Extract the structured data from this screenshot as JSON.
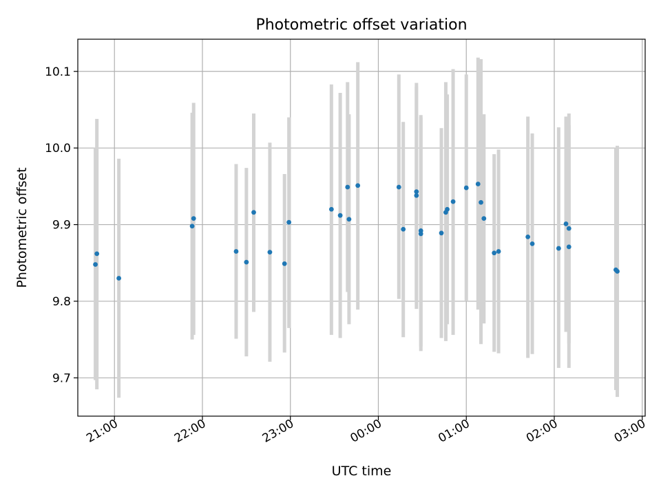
{
  "chart_data": {
    "type": "scatter",
    "title": "Photometric offset variation",
    "xlabel": "UTC time",
    "ylabel": "Photometric offset",
    "x_unit": "UTC hh:mm",
    "xlim": [
      "20:35",
      "03:02"
    ],
    "ylim": [
      9.65,
      10.142
    ],
    "grid": true,
    "x_ticks": [
      "21:00",
      "22:00",
      "23:00",
      "00:00",
      "01:00",
      "02:00",
      "03:00"
    ],
    "y_ticks": [
      9.7,
      9.8,
      9.9,
      10.0,
      10.1
    ],
    "y_tick_labels": [
      "9.7",
      "9.8",
      "9.9",
      "10.0",
      "10.1"
    ],
    "colors": {
      "points": "#1f77b4",
      "errorbars": "#d3d3d3",
      "grid": "#b0b0b0"
    },
    "points": [
      {
        "t": "20:47",
        "y": 9.848,
        "lo": 9.697,
        "hi": 10.0
      },
      {
        "t": "20:48",
        "y": 9.862,
        "lo": 9.685,
        "hi": 10.038
      },
      {
        "t": "21:03",
        "y": 9.83,
        "lo": 9.674,
        "hi": 9.986
      },
      {
        "t": "21:53",
        "y": 9.898,
        "lo": 9.75,
        "hi": 10.046
      },
      {
        "t": "21:54",
        "y": 9.908,
        "lo": 9.756,
        "hi": 10.059
      },
      {
        "t": "22:23",
        "y": 9.865,
        "lo": 9.751,
        "hi": 9.979
      },
      {
        "t": "22:30",
        "y": 9.851,
        "lo": 9.728,
        "hi": 9.974
      },
      {
        "t": "22:35",
        "y": 9.916,
        "lo": 9.786,
        "hi": 10.045
      },
      {
        "t": "22:46",
        "y": 9.864,
        "lo": 9.721,
        "hi": 10.007
      },
      {
        "t": "22:56",
        "y": 9.849,
        "lo": 9.733,
        "hi": 9.966
      },
      {
        "t": "22:59",
        "y": 9.903,
        "lo": 9.765,
        "hi": 10.04
      },
      {
        "t": "23:28",
        "y": 9.92,
        "lo": 9.756,
        "hi": 10.083
      },
      {
        "t": "23:34",
        "y": 9.912,
        "lo": 9.752,
        "hi": 10.072
      },
      {
        "t": "23:39",
        "y": 9.949,
        "lo": 9.812,
        "hi": 10.086
      },
      {
        "t": "23:40",
        "y": 9.907,
        "lo": 9.77,
        "hi": 10.044
      },
      {
        "t": "23:46",
        "y": 9.951,
        "lo": 9.789,
        "hi": 10.112
      },
      {
        "t": "00:14",
        "y": 9.949,
        "lo": 9.803,
        "hi": 10.096
      },
      {
        "t": "00:17",
        "y": 9.894,
        "lo": 9.753,
        "hi": 10.034
      },
      {
        "t": "00:26",
        "y": 9.943,
        "lo": 9.8,
        "hi": 10.085
      },
      {
        "t": "00:26",
        "y": 9.938,
        "lo": 9.79,
        "hi": 10.08
      },
      {
        "t": "00:29",
        "y": 9.892,
        "lo": 9.741,
        "hi": 10.043
      },
      {
        "t": "00:29",
        "y": 9.888,
        "lo": 9.735,
        "hi": 10.04
      },
      {
        "t": "00:43",
        "y": 9.889,
        "lo": 9.752,
        "hi": 10.026
      },
      {
        "t": "00:46",
        "y": 9.916,
        "lo": 9.748,
        "hi": 10.086
      },
      {
        "t": "00:47",
        "y": 9.92,
        "lo": 9.77,
        "hi": 10.07
      },
      {
        "t": "00:51",
        "y": 9.93,
        "lo": 9.756,
        "hi": 10.103
      },
      {
        "t": "01:00",
        "y": 9.948,
        "lo": 9.8,
        "hi": 10.096
      },
      {
        "t": "01:08",
        "y": 9.953,
        "lo": 9.789,
        "hi": 10.118
      },
      {
        "t": "01:10",
        "y": 9.929,
        "lo": 9.744,
        "hi": 10.116
      },
      {
        "t": "01:12",
        "y": 9.908,
        "lo": 9.771,
        "hi": 10.044
      },
      {
        "t": "01:19",
        "y": 9.863,
        "lo": 9.734,
        "hi": 9.992
      },
      {
        "t": "01:22",
        "y": 9.865,
        "lo": 9.732,
        "hi": 9.998
      },
      {
        "t": "01:42",
        "y": 9.884,
        "lo": 9.726,
        "hi": 10.041
      },
      {
        "t": "01:45",
        "y": 9.875,
        "lo": 9.731,
        "hi": 10.019
      },
      {
        "t": "02:03",
        "y": 9.869,
        "lo": 9.713,
        "hi": 10.027
      },
      {
        "t": "02:08",
        "y": 9.901,
        "lo": 9.76,
        "hi": 10.041
      },
      {
        "t": "02:10",
        "y": 9.895,
        "lo": 9.745,
        "hi": 10.045
      },
      {
        "t": "02:10",
        "y": 9.871,
        "lo": 9.713,
        "hi": 10.03
      },
      {
        "t": "02:42",
        "y": 9.841,
        "lo": 9.684,
        "hi": 10.0
      },
      {
        "t": "02:43",
        "y": 9.839,
        "lo": 9.675,
        "hi": 10.003
      }
    ]
  }
}
